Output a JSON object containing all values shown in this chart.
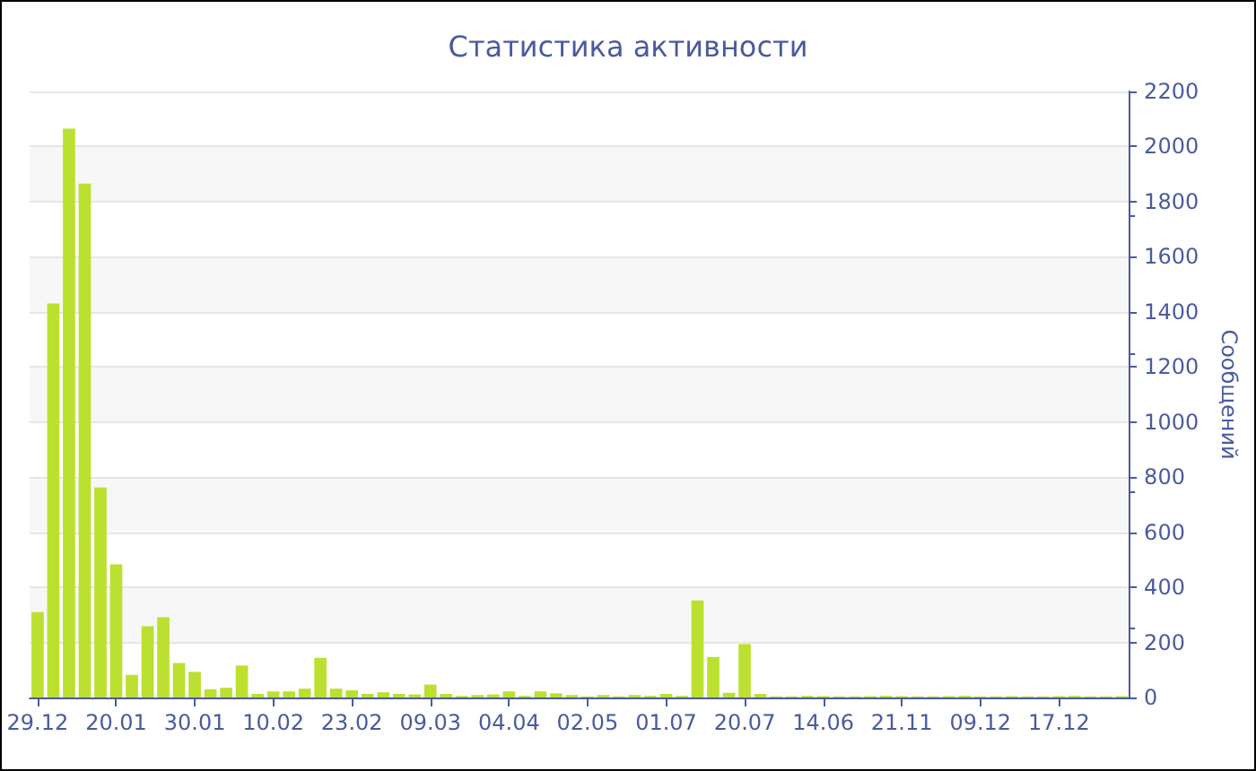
{
  "chart_data": {
    "type": "bar",
    "title": "Статистика активности",
    "ylabel": "Сообщений",
    "categories": [
      "29.12",
      null,
      null,
      null,
      null,
      "20.01",
      null,
      null,
      null,
      null,
      "30.01",
      null,
      null,
      null,
      null,
      "10.02",
      null,
      null,
      null,
      null,
      "23.02",
      null,
      null,
      null,
      null,
      "09.03",
      null,
      null,
      null,
      null,
      "04.04",
      null,
      null,
      null,
      null,
      "02.05",
      null,
      null,
      null,
      null,
      "01.07",
      null,
      null,
      null,
      null,
      "20.07",
      null,
      null,
      null,
      null,
      "14.06",
      null,
      null,
      null,
      null,
      "21.11",
      null,
      null,
      null,
      null,
      "09.12",
      null,
      null,
      null,
      null,
      "17.12",
      null,
      null,
      null,
      null
    ],
    "values": [
      310,
      1430,
      2065,
      1866,
      762,
      483,
      82,
      259,
      291,
      125,
      93,
      30,
      35,
      116,
      13,
      22,
      22,
      32,
      144,
      32,
      26,
      13,
      19,
      13,
      11,
      47,
      13,
      6,
      9,
      11,
      22,
      6,
      22,
      15,
      9,
      4,
      9,
      4,
      9,
      6,
      13,
      6,
      352,
      147,
      17,
      194,
      13,
      4,
      4,
      6,
      5,
      4,
      4,
      5,
      6,
      5,
      4,
      4,
      5,
      6,
      4,
      4,
      5,
      4,
      4,
      5,
      6,
      4,
      4,
      5
    ],
    "color": "#bbe02f",
    "ylim": [
      0,
      2200
    ],
    "yticks": [
      0,
      200,
      400,
      600,
      800,
      1000,
      1200,
      1400,
      1600,
      1800,
      2000,
      2200
    ],
    "grid": "y"
  }
}
